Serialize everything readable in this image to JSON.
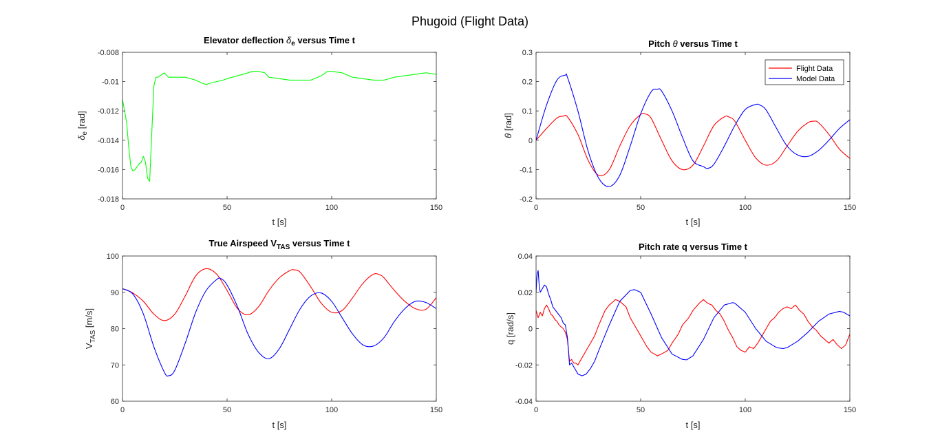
{
  "figure": {
    "title": "Phugoid (Flight Data)"
  },
  "chart_data": [
    {
      "type": "line",
      "title": "Elevator deflection δe versus Time t",
      "title_parts": {
        "pre": "Elevator deflection ",
        "sym": "δ",
        "sub": "e",
        "post": " versus Time t"
      },
      "xlabel": "t [s]",
      "ylabel": "δe [rad]",
      "ylabel_parts": {
        "main": "δ",
        "sub": "e",
        "post": " [rad]"
      },
      "xlim": [
        0,
        150
      ],
      "ylim": [
        -0.018,
        -0.008
      ],
      "xticks": [
        0,
        50,
        100,
        150
      ],
      "xticklabels": [
        "0",
        "50",
        "100",
        "150"
      ],
      "yticks": [
        -0.018,
        -0.016,
        -0.014,
        -0.012,
        -0.01,
        -0.008
      ],
      "yticklabels": [
        "-0.018",
        "-0.016",
        "-0.014",
        "-0.012",
        "-0.01",
        "-0.008"
      ],
      "grid": false,
      "series": [
        {
          "color": "#00ff00",
          "interp": "linear",
          "x": [
            0,
            1,
            2,
            3,
            4,
            5,
            6,
            7,
            8,
            9,
            10,
            11,
            12,
            13,
            14,
            15,
            16,
            17,
            18,
            19,
            20,
            22,
            25,
            28,
            30,
            35,
            38,
            40,
            42,
            45,
            48,
            50,
            55,
            60,
            62,
            65,
            68,
            70,
            75,
            80,
            85,
            90,
            95,
            98,
            100,
            105,
            110,
            115,
            120,
            125,
            130,
            135,
            140,
            145,
            150
          ],
          "y": [
            -0.0112,
            -0.012,
            -0.0128,
            -0.0145,
            -0.0158,
            -0.0161,
            -0.016,
            -0.0158,
            -0.0156,
            -0.0155,
            -0.0151,
            -0.0155,
            -0.0166,
            -0.0168,
            -0.0135,
            -0.0103,
            -0.0097,
            -0.0097,
            -0.0096,
            -0.0095,
            -0.0094,
            -0.0097,
            -0.0097,
            -0.0097,
            -0.0097,
            -0.0099,
            -0.0101,
            -0.0102,
            -0.0101,
            -0.01,
            -0.0099,
            -0.0098,
            -0.0096,
            -0.0094,
            -0.0093,
            -0.0093,
            -0.0094,
            -0.0097,
            -0.0098,
            -0.0099,
            -0.0099,
            -0.0099,
            -0.0096,
            -0.0093,
            -0.0093,
            -0.0094,
            -0.0097,
            -0.0098,
            -0.0099,
            -0.0099,
            -0.0097,
            -0.0096,
            -0.0095,
            -0.0094,
            -0.0095
          ]
        }
      ]
    },
    {
      "type": "line",
      "title": "Pitch θ versus Time t",
      "title_parts": {
        "pre": "Pitch ",
        "sym": "θ",
        "sub": "",
        "post": " versus Time t"
      },
      "xlabel": "t [s]",
      "ylabel": "θ [rad]",
      "ylabel_parts": {
        "main": "θ",
        "sub": "",
        "post": " [rad]"
      },
      "xlim": [
        0,
        150
      ],
      "ylim": [
        -0.2,
        0.3
      ],
      "xticks": [
        0,
        50,
        100,
        150
      ],
      "xticklabels": [
        "0",
        "50",
        "100",
        "150"
      ],
      "yticks": [
        -0.2,
        -0.1,
        0,
        0.1,
        0.2,
        0.3
      ],
      "yticklabels": [
        "-0.2",
        "-0.1",
        "0",
        "0.1",
        "0.2",
        "0.3"
      ],
      "grid": false,
      "legend": "top-right",
      "series": [
        {
          "name": "Flight Data",
          "color": "#ff0000",
          "interp": "smooth",
          "x": [
            0,
            5,
            10,
            13,
            15,
            20,
            25,
            30,
            35,
            40,
            45,
            50,
            52,
            55,
            60,
            65,
            70,
            75,
            80,
            85,
            90,
            92,
            95,
            100,
            105,
            110,
            115,
            120,
            125,
            130,
            133,
            135,
            140,
            145,
            150
          ],
          "y": [
            0.0,
            0.04,
            0.076,
            0.082,
            0.08,
            0.02,
            -0.07,
            -0.12,
            -0.1,
            -0.02,
            0.05,
            0.088,
            0.09,
            0.075,
            0.0,
            -0.07,
            -0.1,
            -0.085,
            -0.02,
            0.05,
            0.08,
            0.08,
            0.065,
            0.0,
            -0.06,
            -0.085,
            -0.07,
            -0.02,
            0.03,
            0.06,
            0.065,
            0.06,
            0.02,
            -0.03,
            -0.062
          ]
        },
        {
          "name": "Model Data",
          "color": "#0000ff",
          "interp": "smooth",
          "x": [
            0,
            5,
            10,
            14,
            15,
            20,
            25,
            30,
            35,
            40,
            45,
            50,
            55,
            58,
            60,
            65,
            70,
            75,
            80,
            82,
            85,
            90,
            95,
            100,
            105,
            107,
            110,
            115,
            120,
            125,
            130,
            135,
            140,
            145,
            150
          ],
          "y": [
            0.0,
            0.12,
            0.205,
            0.222,
            0.215,
            0.1,
            -0.04,
            -0.13,
            -0.158,
            -0.12,
            -0.02,
            0.09,
            0.165,
            0.174,
            0.168,
            0.1,
            0.01,
            -0.07,
            -0.09,
            -0.096,
            -0.082,
            -0.02,
            0.05,
            0.105,
            0.122,
            0.12,
            0.103,
            0.04,
            -0.02,
            -0.05,
            -0.055,
            -0.035,
            0.0,
            0.04,
            0.07
          ]
        }
      ]
    },
    {
      "type": "line",
      "title": "True Airspeed VTAS versus Time t",
      "title_parts": {
        "pre": "True Airspeed ",
        "sym": "V",
        "sub": "TAS",
        "post": " versus Time t"
      },
      "xlabel": "t [s]",
      "ylabel": "VTAS [m/s]",
      "ylabel_parts": {
        "main": "V",
        "sub": "TAS",
        "post": " [m/s]"
      },
      "xlim": [
        0,
        150
      ],
      "ylim": [
        60,
        100
      ],
      "xticks": [
        0,
        50,
        100,
        150
      ],
      "xticklabels": [
        "0",
        "50",
        "100",
        "150"
      ],
      "yticks": [
        60,
        70,
        80,
        90,
        100
      ],
      "yticklabels": [
        "60",
        "70",
        "80",
        "90",
        "100"
      ],
      "grid": false,
      "series": [
        {
          "name": "Flight Data",
          "color": "#ff0000",
          "interp": "smooth",
          "x": [
            0,
            5,
            10,
            15,
            20,
            25,
            30,
            35,
            40,
            45,
            50,
            55,
            60,
            65,
            70,
            75,
            80,
            82,
            85,
            90,
            95,
            100,
            105,
            110,
            115,
            120,
            123,
            125,
            130,
            135,
            140,
            145,
            150
          ],
          "y": [
            91,
            89.8,
            87.5,
            84,
            82.2,
            84,
            89,
            94.5,
            96.5,
            95,
            90.5,
            85.5,
            83.8,
            86,
            90.5,
            94,
            96,
            96.2,
            95.5,
            91.5,
            87,
            84.5,
            85,
            88.5,
            92.5,
            95,
            94.8,
            94,
            90.5,
            87.5,
            85.5,
            85.3,
            88.5
          ]
        },
        {
          "name": "Model Data",
          "color": "#0000ff",
          "interp": "smooth",
          "x": [
            0,
            5,
            10,
            15,
            20,
            22,
            25,
            30,
            35,
            40,
            45,
            47,
            50,
            55,
            60,
            65,
            70,
            75,
            80,
            85,
            90,
            95,
            100,
            105,
            110,
            115,
            120,
            125,
            130,
            135,
            140,
            145,
            150
          ],
          "y": [
            91,
            89.5,
            84,
            75,
            68,
            67,
            68.5,
            76,
            84.5,
            90.5,
            93.5,
            93.8,
            92,
            86,
            78.5,
            73.5,
            71.7,
            74.5,
            80,
            85.5,
            89,
            89.8,
            87.5,
            83,
            78.5,
            75.5,
            75.2,
            77.5,
            82,
            85.5,
            87.5,
            87.2,
            85.5
          ]
        }
      ]
    },
    {
      "type": "line",
      "title": "Pitch rate q versus Time t",
      "title_parts": {
        "pre": "Pitch rate q versus Time t",
        "sym": "",
        "sub": "",
        "post": ""
      },
      "xlabel": "t [s]",
      "ylabel": "q [rad/s]",
      "ylabel_parts": {
        "main": "q [rad/s]",
        "sub": "",
        "post": ""
      },
      "xlim": [
        0,
        150
      ],
      "ylim": [
        -0.04,
        0.04
      ],
      "xticks": [
        0,
        50,
        100,
        150
      ],
      "xticklabels": [
        "0",
        "50",
        "100",
        "150"
      ],
      "yticks": [
        -0.04,
        -0.02,
        0,
        0.02,
        0.04
      ],
      "yticklabels": [
        "-0.04",
        "-0.02",
        "0",
        "0.02",
        "0.04"
      ],
      "grid": false,
      "series": [
        {
          "name": "Flight Data",
          "color": "#ff0000",
          "interp": "linear",
          "x": [
            0,
            1,
            2,
            3,
            4,
            5,
            6,
            7,
            8,
            9,
            10,
            11,
            12,
            13,
            14,
            15,
            16,
            17,
            18,
            19,
            20,
            22,
            25,
            28,
            30,
            33,
            35,
            38,
            40,
            43,
            45,
            48,
            50,
            53,
            55,
            58,
            60,
            63,
            65,
            68,
            70,
            73,
            75,
            78,
            80,
            82,
            84,
            86,
            88,
            90,
            92,
            94,
            96,
            98,
            100,
            102,
            104,
            106,
            108,
            110,
            112,
            114,
            116,
            118,
            120,
            122,
            124,
            126,
            128,
            130,
            132,
            134,
            136,
            138,
            140,
            142,
            144,
            146,
            148,
            150
          ],
          "y": [
            0.01,
            0.006,
            0.009,
            0.007,
            0.011,
            0.013,
            0.011,
            0.008,
            0.007,
            0.005,
            0.004,
            0.002,
            0.001,
            0.0,
            -0.002,
            -0.006,
            -0.018,
            -0.017,
            -0.019,
            -0.019,
            -0.02,
            -0.016,
            -0.01,
            -0.004,
            0.002,
            0.01,
            0.013,
            0.016,
            0.015,
            0.012,
            0.006,
            0.0,
            -0.004,
            -0.01,
            -0.013,
            -0.015,
            -0.014,
            -0.012,
            -0.008,
            -0.003,
            0.002,
            0.006,
            0.01,
            0.014,
            0.016,
            0.014,
            0.013,
            0.01,
            0.008,
            0.004,
            -0.001,
            -0.005,
            -0.01,
            -0.012,
            -0.013,
            -0.01,
            -0.011,
            -0.008,
            -0.004,
            0.0,
            0.004,
            0.006,
            0.009,
            0.011,
            0.012,
            0.011,
            0.013,
            0.01,
            0.008,
            0.004,
            0.001,
            -0.001,
            -0.004,
            -0.006,
            -0.008,
            -0.006,
            -0.009,
            -0.011,
            -0.009,
            -0.003
          ]
        },
        {
          "name": "Model Data",
          "color": "#0000ff",
          "interp": "linear",
          "x": [
            0,
            0.5,
            1,
            1.5,
            2,
            3,
            4,
            5,
            6,
            7,
            8,
            10,
            12,
            13,
            14,
            15,
            16,
            17,
            18,
            20,
            22,
            24,
            26,
            28,
            30,
            35,
            40,
            45,
            47,
            50,
            55,
            60,
            65,
            70,
            72,
            75,
            80,
            85,
            90,
            94,
            95,
            100,
            105,
            110,
            115,
            118,
            120,
            125,
            130,
            135,
            140,
            145,
            147,
            150
          ],
          "y": [
            0.02,
            0.03,
            0.032,
            0.024,
            0.02,
            0.022,
            0.024,
            0.023,
            0.019,
            0.016,
            0.012,
            0.009,
            0.006,
            0.003,
            0.002,
            -0.005,
            -0.02,
            -0.019,
            -0.021,
            -0.025,
            -0.026,
            -0.025,
            -0.022,
            -0.018,
            -0.012,
            0.002,
            0.015,
            0.021,
            0.0215,
            0.02,
            0.008,
            -0.005,
            -0.014,
            -0.017,
            -0.0172,
            -0.015,
            -0.006,
            0.006,
            0.013,
            0.0143,
            0.014,
            0.009,
            0.0,
            -0.007,
            -0.0105,
            -0.011,
            -0.0105,
            -0.007,
            -0.002,
            0.004,
            0.008,
            0.0095,
            0.009,
            0.007
          ]
        }
      ]
    }
  ]
}
